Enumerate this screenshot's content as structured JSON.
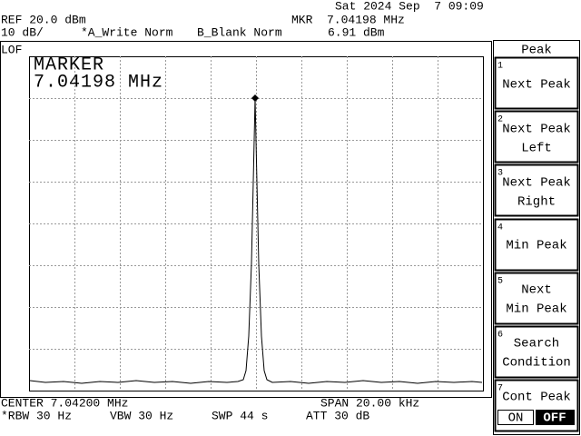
{
  "status": {
    "datetime": "Sat 2024 Sep  7 09:09"
  },
  "header": {
    "ref": "REF 20.0 dBm",
    "marker_freq": "MKR  7.04198 MHz",
    "scale": "10 dB/",
    "trace_a": "*A_Write Norm",
    "trace_b": "B_Blank Norm",
    "marker_level": "6.91 dBm"
  },
  "lof": "LOF",
  "display": {
    "marker_title": "MARKER",
    "marker_freq": "7.04198 MHz"
  },
  "footer": {
    "center": "CENTER 7.04200 MHz",
    "span": "SPAN 20.00 kHz",
    "rbw": "*RBW 30 Hz",
    "vbw": "VBW 30 Hz",
    "swp": "SWP 44 s",
    "att": "ATT 30 dB"
  },
  "menu": {
    "title": "Peak",
    "keys": [
      {
        "number": "1",
        "lines": [
          "Next Peak"
        ]
      },
      {
        "number": "2",
        "lines": [
          "Next Peak",
          "Left"
        ]
      },
      {
        "number": "3",
        "lines": [
          "Next Peak",
          "Right"
        ]
      },
      {
        "number": "4",
        "lines": [
          "Min Peak"
        ]
      },
      {
        "number": "5",
        "lines": [
          "Next",
          "Min Peak"
        ]
      },
      {
        "number": "6",
        "lines": [
          "Search",
          "Condition"
        ]
      },
      {
        "number": "7",
        "lines": [
          "Cont Peak"
        ]
      }
    ],
    "toggle": [
      "ON",
      "OFF"
    ]
  }
}
